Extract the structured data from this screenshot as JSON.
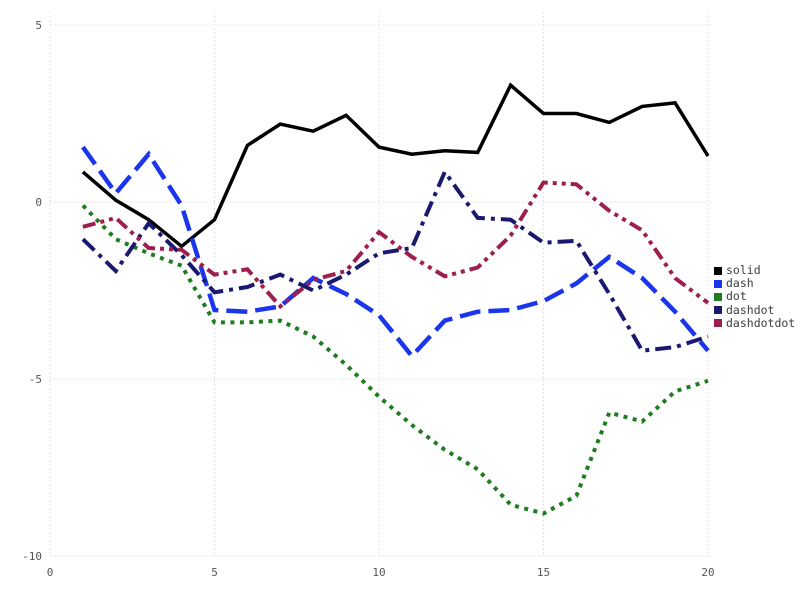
{
  "chart_data": {
    "type": "line",
    "title": "",
    "xlabel": "",
    "ylabel": "",
    "xlim": [
      0,
      20
    ],
    "ylim": [
      -10,
      5
    ],
    "x_ticks": [
      "0",
      "5",
      "10",
      "15",
      "20"
    ],
    "x_tick_values": [
      0,
      5,
      10,
      15,
      20
    ],
    "y_ticks": [
      "5",
      "0",
      "-5",
      "-10"
    ],
    "y_tick_values": [
      5,
      0,
      -5,
      -10
    ],
    "grid": "dotted",
    "grid_color": "#dcdce6",
    "legend_position": "right-outside",
    "x": [
      1,
      2,
      3,
      4,
      5,
      6,
      7,
      8,
      9,
      10,
      11,
      12,
      13,
      14,
      15,
      16,
      17,
      18,
      19,
      20
    ],
    "series": [
      {
        "name": "solid",
        "color": "#000000",
        "line_style": "solid",
        "values": [
          0.85,
          0.05,
          -0.5,
          -1.25,
          -0.5,
          1.6,
          2.2,
          2.0,
          2.45,
          1.55,
          1.35,
          1.45,
          1.4,
          3.3,
          2.5,
          2.5,
          2.25,
          2.7,
          2.8,
          1.3
        ]
      },
      {
        "name": "dash",
        "color": "#1a35ec",
        "line_style": "dash",
        "values": [
          1.55,
          0.25,
          1.35,
          -0.1,
          -3.05,
          -3.1,
          -2.95,
          -2.15,
          -2.6,
          -3.2,
          -4.35,
          -3.35,
          -3.1,
          -3.05,
          -2.8,
          -2.3,
          -1.55,
          -2.15,
          -3.1,
          -4.2
        ]
      },
      {
        "name": "dot",
        "color": "#1e7d1e",
        "line_style": "dot",
        "values": [
          -0.1,
          -1.05,
          -1.45,
          -1.8,
          -3.4,
          -3.4,
          -3.35,
          -3.8,
          -4.6,
          -5.5,
          -6.3,
          -7.0,
          -7.55,
          -8.55,
          -8.8,
          -8.3,
          -5.95,
          -6.2,
          -5.35,
          -5.05
        ]
      },
      {
        "name": "dashdot",
        "color": "#191970",
        "line_style": "dashdot",
        "values": [
          -1.05,
          -1.95,
          -0.6,
          -1.5,
          -2.55,
          -2.4,
          -2.05,
          -2.5,
          -2.05,
          -1.45,
          -1.3,
          0.85,
          -0.45,
          -0.5,
          -1.15,
          -1.1,
          -2.6,
          -4.2,
          -4.1,
          -3.8
        ]
      },
      {
        "name": "dashdotdot",
        "color": "#9c1f50",
        "line_style": "dashdotdot",
        "values": [
          -0.7,
          -0.45,
          -1.3,
          -1.35,
          -2.05,
          -1.9,
          -2.95,
          -2.2,
          -1.95,
          -0.85,
          -1.55,
          -2.1,
          -1.85,
          -0.95,
          0.55,
          0.5,
          -0.25,
          -0.8,
          -2.15,
          -2.85
        ]
      }
    ]
  }
}
